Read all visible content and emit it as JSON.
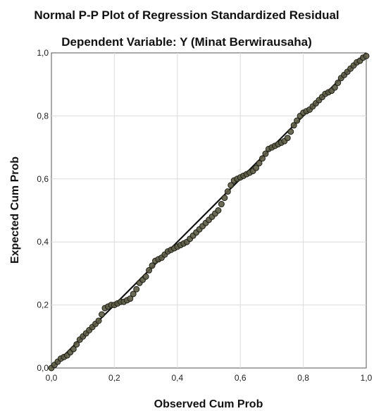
{
  "chart_data": {
    "type": "scatter",
    "title": "Normal P-P Plot of Regression Standardized Residual",
    "subtitle": "Dependent Variable: Y (Minat Berwirausaha)",
    "xlabel": "Observed Cum Prob",
    "ylabel": "Expected Cum Prob",
    "xlim": [
      0,
      1
    ],
    "ylim": [
      0,
      1
    ],
    "xticks": [
      "0,0",
      "0,2",
      "0,4",
      "0,6",
      "0,8",
      "1,0"
    ],
    "yticks": [
      "0,0",
      "0,2",
      "0,4",
      "0,6",
      "0,8",
      "1,0"
    ],
    "grid": true,
    "reference_line": {
      "from": [
        0,
        0
      ],
      "to": [
        1,
        1
      ]
    },
    "colors": {
      "points": "#5b5b45",
      "point_edge": "#1d1d14",
      "line": "#111111"
    },
    "points": [
      [
        0.0,
        0.0
      ],
      [
        0.01,
        0.01
      ],
      [
        0.02,
        0.02
      ],
      [
        0.03,
        0.03
      ],
      [
        0.04,
        0.035
      ],
      [
        0.05,
        0.04
      ],
      [
        0.06,
        0.05
      ],
      [
        0.07,
        0.06
      ],
      [
        0.08,
        0.075
      ],
      [
        0.09,
        0.09
      ],
      [
        0.1,
        0.1
      ],
      [
        0.11,
        0.11
      ],
      [
        0.12,
        0.12
      ],
      [
        0.13,
        0.13
      ],
      [
        0.14,
        0.14
      ],
      [
        0.15,
        0.15
      ],
      [
        0.16,
        0.17
      ],
      [
        0.17,
        0.19
      ],
      [
        0.18,
        0.195
      ],
      [
        0.19,
        0.2
      ],
      [
        0.2,
        0.2
      ],
      [
        0.21,
        0.205
      ],
      [
        0.22,
        0.21
      ],
      [
        0.23,
        0.21
      ],
      [
        0.24,
        0.215
      ],
      [
        0.25,
        0.22
      ],
      [
        0.26,
        0.235
      ],
      [
        0.27,
        0.25
      ],
      [
        0.28,
        0.27
      ],
      [
        0.29,
        0.28
      ],
      [
        0.3,
        0.29
      ],
      [
        0.31,
        0.31
      ],
      [
        0.32,
        0.325
      ],
      [
        0.33,
        0.34
      ],
      [
        0.34,
        0.345
      ],
      [
        0.35,
        0.35
      ],
      [
        0.36,
        0.36
      ],
      [
        0.37,
        0.37
      ],
      [
        0.38,
        0.375
      ],
      [
        0.39,
        0.38
      ],
      [
        0.4,
        0.385
      ],
      [
        0.41,
        0.39
      ],
      [
        0.42,
        0.395
      ],
      [
        0.43,
        0.4
      ],
      [
        0.44,
        0.41
      ],
      [
        0.45,
        0.42
      ],
      [
        0.46,
        0.43
      ],
      [
        0.47,
        0.44
      ],
      [
        0.48,
        0.45
      ],
      [
        0.49,
        0.46
      ],
      [
        0.5,
        0.47
      ],
      [
        0.51,
        0.48
      ],
      [
        0.52,
        0.49
      ],
      [
        0.53,
        0.5
      ],
      [
        0.54,
        0.52
      ],
      [
        0.55,
        0.54
      ],
      [
        0.56,
        0.56
      ],
      [
        0.57,
        0.58
      ],
      [
        0.58,
        0.595
      ],
      [
        0.59,
        0.6
      ],
      [
        0.6,
        0.605
      ],
      [
        0.61,
        0.61
      ],
      [
        0.62,
        0.615
      ],
      [
        0.63,
        0.62
      ],
      [
        0.64,
        0.625
      ],
      [
        0.65,
        0.635
      ],
      [
        0.66,
        0.65
      ],
      [
        0.67,
        0.665
      ],
      [
        0.68,
        0.68
      ],
      [
        0.69,
        0.695
      ],
      [
        0.7,
        0.7
      ],
      [
        0.71,
        0.705
      ],
      [
        0.72,
        0.71
      ],
      [
        0.73,
        0.715
      ],
      [
        0.74,
        0.72
      ],
      [
        0.75,
        0.73
      ],
      [
        0.76,
        0.75
      ],
      [
        0.77,
        0.77
      ],
      [
        0.78,
        0.785
      ],
      [
        0.79,
        0.8
      ],
      [
        0.8,
        0.81
      ],
      [
        0.81,
        0.815
      ],
      [
        0.82,
        0.82
      ],
      [
        0.83,
        0.83
      ],
      [
        0.84,
        0.84
      ],
      [
        0.85,
        0.85
      ],
      [
        0.86,
        0.86
      ],
      [
        0.87,
        0.87
      ],
      [
        0.88,
        0.875
      ],
      [
        0.89,
        0.88
      ],
      [
        0.9,
        0.89
      ],
      [
        0.91,
        0.905
      ],
      [
        0.92,
        0.92
      ],
      [
        0.93,
        0.93
      ],
      [
        0.94,
        0.94
      ],
      [
        0.95,
        0.95
      ],
      [
        0.96,
        0.96
      ],
      [
        0.97,
        0.97
      ],
      [
        0.98,
        0.975
      ],
      [
        0.99,
        0.985
      ],
      [
        1.0,
        0.99
      ]
    ]
  }
}
